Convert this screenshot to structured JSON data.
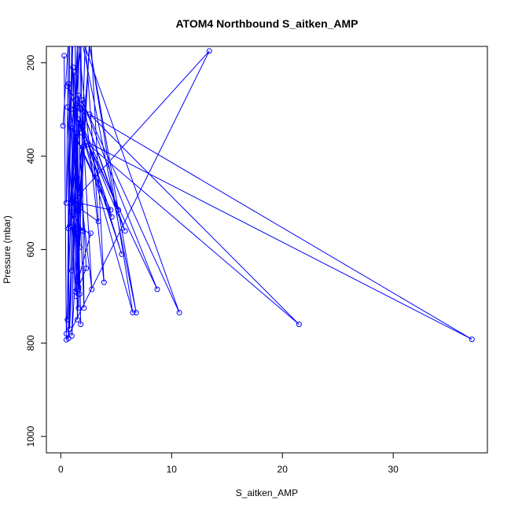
{
  "chart_data": {
    "type": "line",
    "title": "ATOM4 Northbound S_aitken_AMP",
    "xlabel": "S_aitken_AMP",
    "ylabel": "Pressure (mbar)",
    "xlim": [
      -1.3,
      38.5
    ],
    "ylim": [
      1035,
      165
    ],
    "y_reversed": true,
    "grid": false,
    "x_ticks": [
      0,
      10,
      20,
      30
    ],
    "y_ticks": [
      200,
      400,
      600,
      800,
      1000
    ],
    "series": [
      {
        "color": "#0000ff",
        "marker": "open-circle",
        "points": [
          [
            0.2,
            335
          ],
          [
            0.7,
            150
          ],
          [
            0.5,
            500
          ],
          [
            1.1,
            140
          ],
          [
            0.7,
            555
          ],
          [
            1.7,
            150
          ],
          [
            1.0,
            645
          ],
          [
            2.7,
            140
          ],
          [
            3.9,
            670
          ],
          [
            1.5,
            140
          ],
          [
            1.6,
            685
          ],
          [
            1.8,
            130
          ],
          [
            2.1,
            725
          ],
          [
            1.2,
            220
          ],
          [
            0.9,
            500
          ],
          [
            1.5,
            160
          ],
          [
            0.7,
            790
          ],
          [
            0.8,
            150
          ],
          [
            0.6,
            750
          ],
          [
            1.0,
            150
          ],
          [
            1.6,
            725
          ],
          [
            1.3,
            160
          ],
          [
            1.8,
            760
          ],
          [
            1.1,
            210
          ],
          [
            1.5,
            750
          ],
          [
            2.2,
            150
          ],
          [
            3.4,
            540
          ],
          [
            1.0,
            500
          ],
          [
            13.4,
            175
          ],
          [
            0.5,
            793
          ],
          [
            0.3,
            185
          ],
          [
            0.5,
            780
          ],
          [
            1.3,
            295
          ],
          [
            0.6,
            250
          ],
          [
            1.8,
            300
          ],
          [
            0.8,
            550
          ],
          [
            1.6,
            270
          ],
          [
            1.9,
            350
          ],
          [
            6.5,
            735
          ],
          [
            2.5,
            150
          ],
          [
            6.8,
            735
          ],
          [
            1.8,
            140
          ],
          [
            10.7,
            735
          ],
          [
            1.9,
            280
          ],
          [
            8.7,
            685
          ],
          [
            2.5,
            375
          ],
          [
            21.5,
            760
          ],
          [
            2.6,
            310
          ],
          [
            37.1,
            792
          ],
          [
            2.4,
            370
          ],
          [
            5.5,
            610
          ],
          [
            1.5,
            320
          ],
          [
            5.8,
            560
          ],
          [
            1.8,
            290
          ],
          [
            5.2,
            515
          ],
          [
            1.9,
            330
          ],
          [
            4.6,
            530
          ],
          [
            1.0,
            340
          ],
          [
            4.5,
            515
          ],
          [
            1.6,
            500
          ],
          [
            1.7,
            695
          ],
          [
            1.4,
            350
          ],
          [
            1.0,
            785
          ],
          [
            2.6,
            150
          ],
          [
            1.4,
            700
          ],
          [
            0.9,
            300
          ],
          [
            2.8,
            685
          ],
          [
            1.9,
            300
          ],
          [
            2.0,
            560
          ],
          [
            1.2,
            525
          ],
          [
            1.6,
            680
          ],
          [
            2.3,
            640
          ],
          [
            1.6,
            330
          ],
          [
            0.8,
            770
          ],
          [
            1.0,
            520
          ],
          [
            1.7,
            595
          ],
          [
            2.0,
            380
          ],
          [
            1.5,
            555
          ],
          [
            2.7,
            565
          ],
          [
            1.3,
            690
          ],
          [
            0.6,
            295
          ],
          [
            0.7,
            245
          ]
        ]
      }
    ]
  }
}
